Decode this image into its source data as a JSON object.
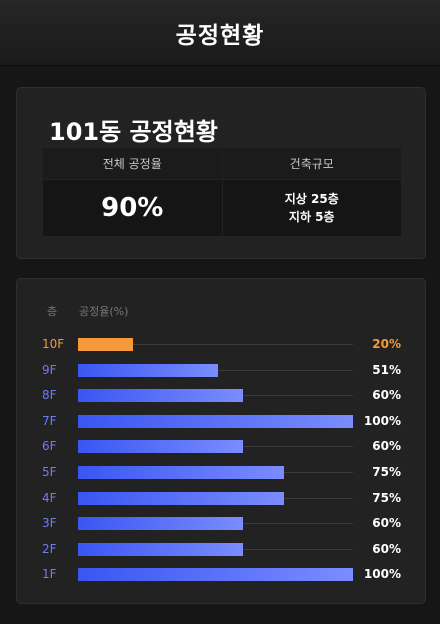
{
  "header": {
    "title": "공정현황"
  },
  "summary": {
    "title": "101동 공정현황",
    "overall_label": "전체 공정율",
    "overall_value": "90%",
    "scale_label": "건축규모",
    "scale_above": "지상 25층",
    "scale_below": "지하 5층"
  },
  "chart": {
    "floor_header": "층",
    "rate_header": "공정율(%)"
  },
  "chart_data": {
    "type": "bar",
    "orientation": "horizontal",
    "categories": [
      "10F",
      "9F",
      "8F",
      "7F",
      "6F",
      "5F",
      "4F",
      "3F",
      "2F",
      "1F"
    ],
    "values": [
      20,
      51,
      60,
      100,
      60,
      75,
      75,
      60,
      60,
      100
    ],
    "value_labels": [
      "20%",
      "51%",
      "60%",
      "100%",
      "60%",
      "75%",
      "75%",
      "60%",
      "60%",
      "100%"
    ],
    "xlim": [
      0,
      100
    ],
    "highlight_index": 0,
    "colors": {
      "default": "#4a64f5",
      "highlight": "#f59a38"
    }
  }
}
